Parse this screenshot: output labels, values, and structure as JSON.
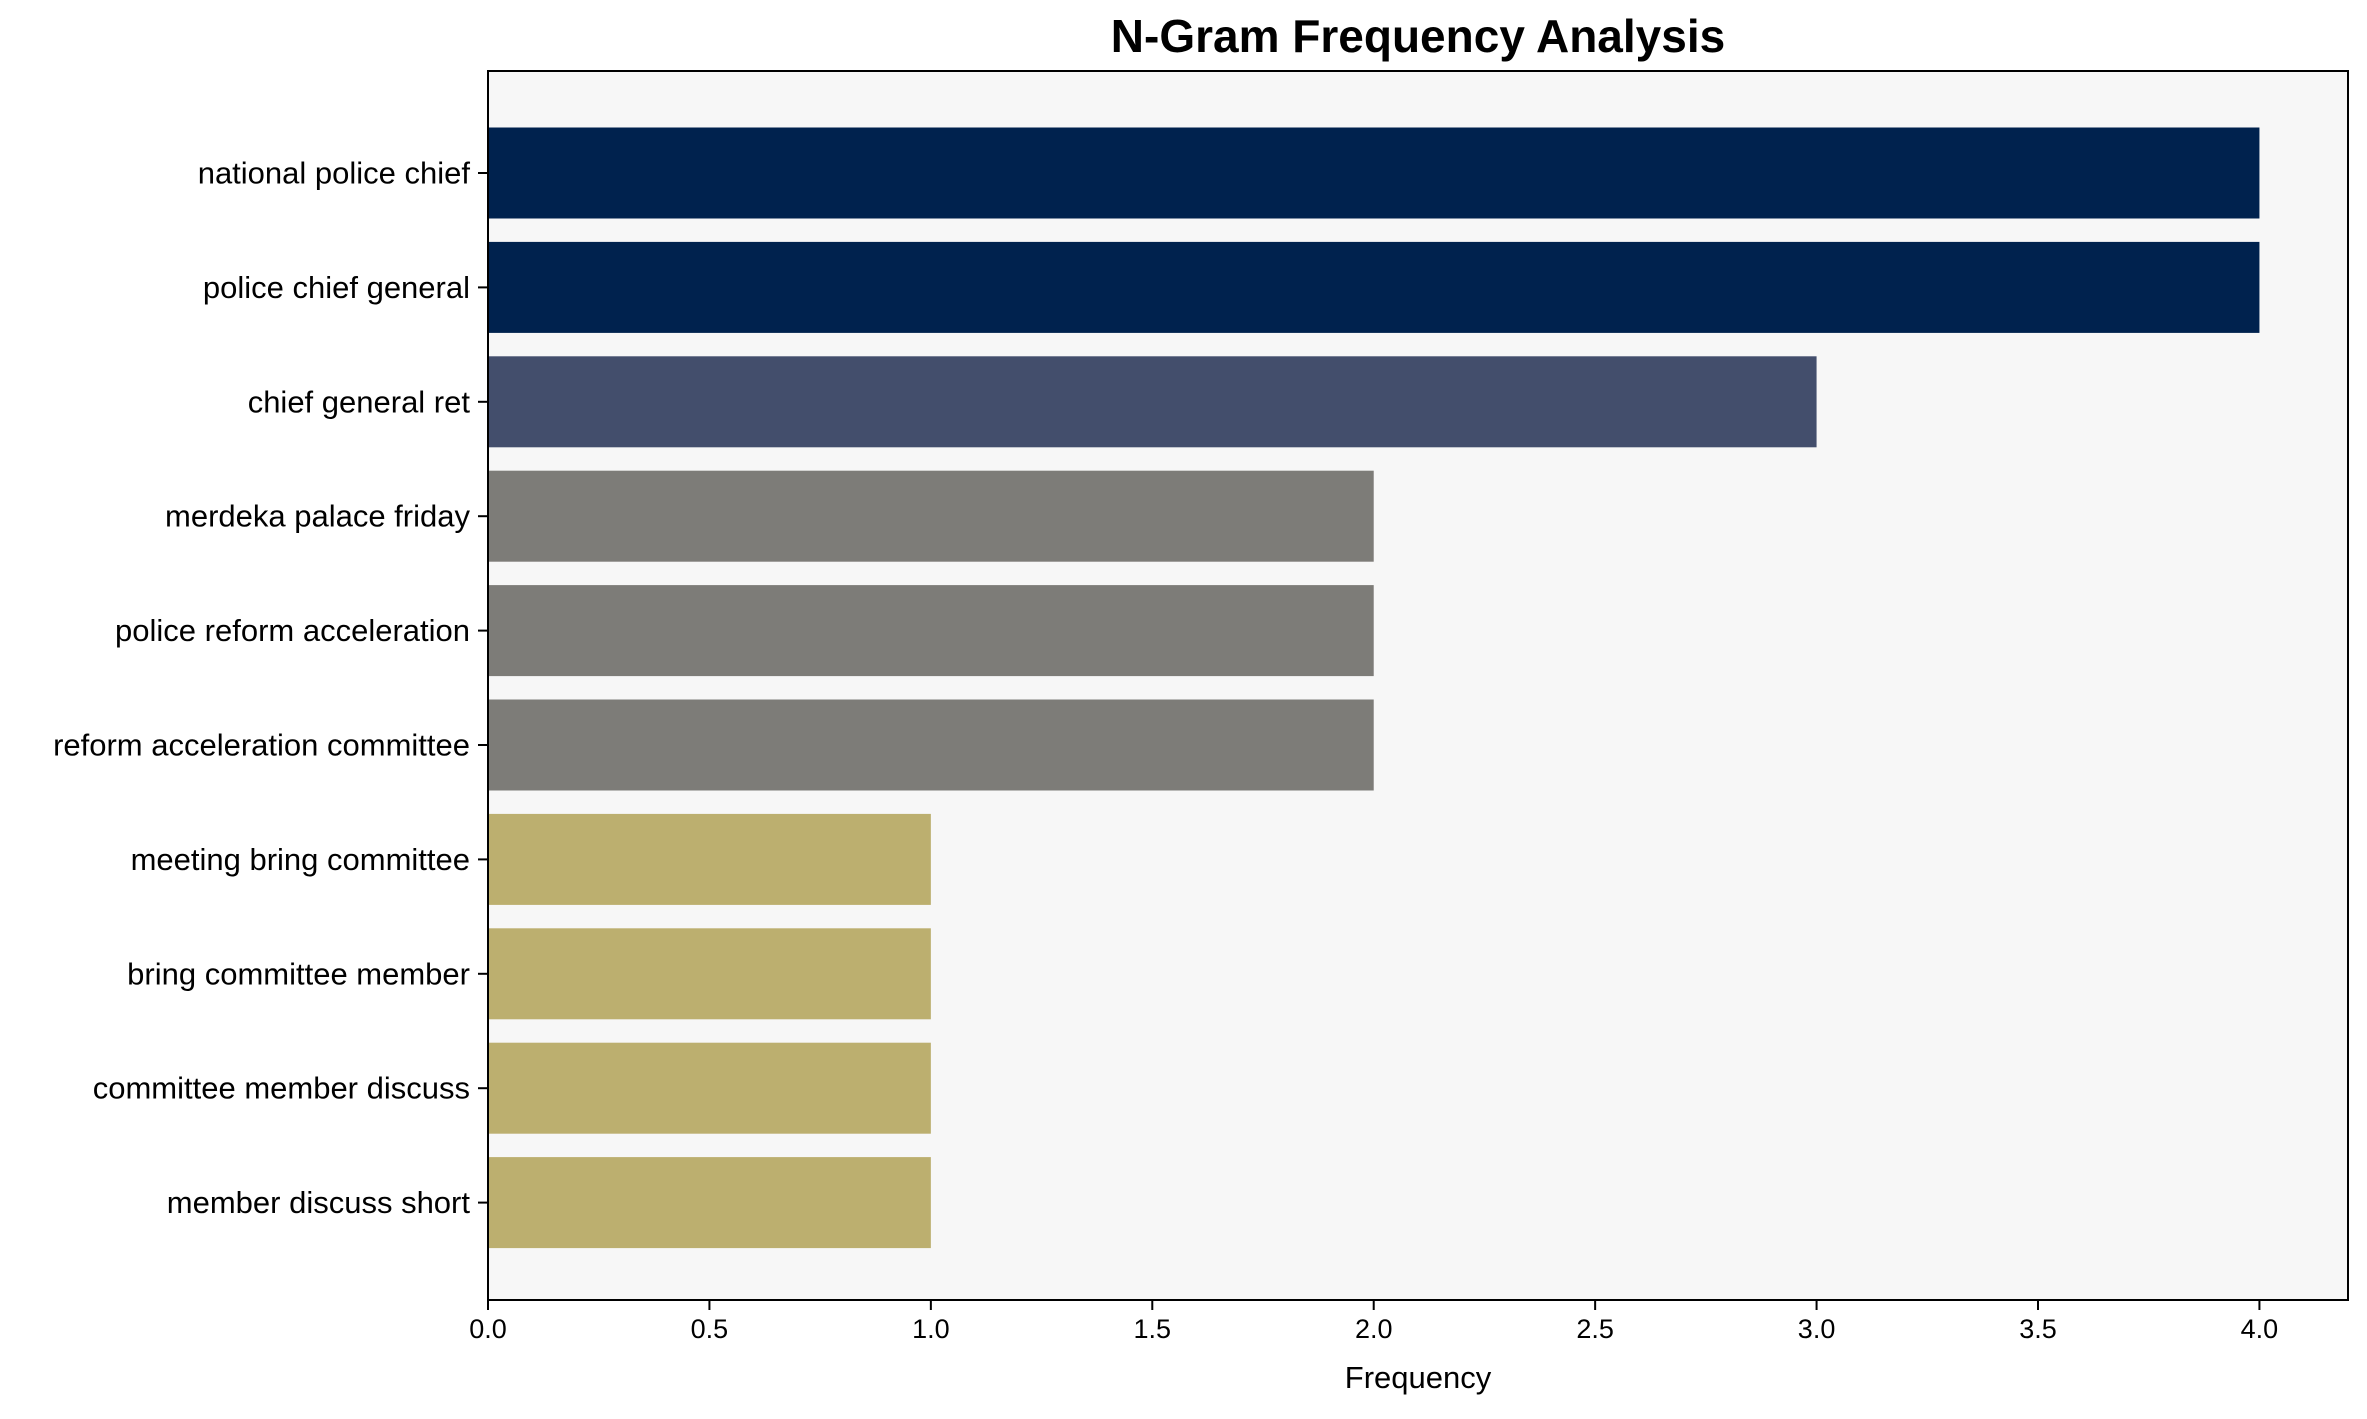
{
  "chart_data": {
    "type": "bar",
    "orientation": "horizontal",
    "title": "N-Gram Frequency Analysis",
    "xlabel": "Frequency",
    "ylabel": "",
    "xlim": [
      0,
      4.2
    ],
    "xticks": [
      0.0,
      0.5,
      1.0,
      1.5,
      2.0,
      2.5,
      3.0,
      3.5,
      4.0
    ],
    "xtick_labels": [
      "0.0",
      "0.5",
      "1.0",
      "1.5",
      "2.0",
      "2.5",
      "3.0",
      "3.5",
      "4.0"
    ],
    "grid": false,
    "legend": null,
    "categories": [
      "national police chief",
      "police chief general",
      "chief general ret",
      "merdeka palace friday",
      "police reform acceleration",
      "reform acceleration committee",
      "meeting bring committee",
      "bring committee member",
      "committee member discuss",
      "member discuss short"
    ],
    "values": [
      4,
      4,
      3,
      2,
      2,
      2,
      1,
      1,
      1,
      1
    ],
    "colors": [
      "#00224e",
      "#00224e",
      "#434e6c",
      "#7d7c78",
      "#7d7c78",
      "#7d7c78",
      "#bcaf6f",
      "#bcaf6f",
      "#bcaf6f",
      "#bcaf6f"
    ],
    "plot_background": "#f7f7f7"
  }
}
